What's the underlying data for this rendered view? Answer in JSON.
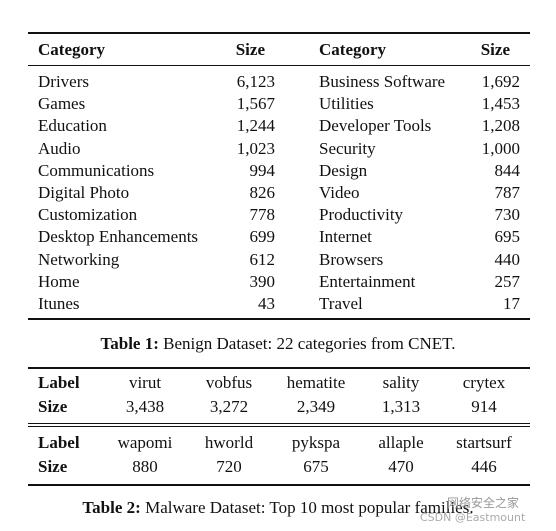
{
  "table1": {
    "header": [
      "Category",
      "Size",
      "Category",
      "Size"
    ],
    "rows": [
      [
        "Drivers",
        "6,123",
        "Business Software",
        "1,692"
      ],
      [
        "Games",
        "1,567",
        "Utilities",
        "1,453"
      ],
      [
        "Education",
        "1,244",
        "Developer Tools",
        "1,208"
      ],
      [
        "Audio",
        "1,023",
        "Security",
        "1,000"
      ],
      [
        "Communications",
        "994",
        "Design",
        "844"
      ],
      [
        "Digital Photo",
        "826",
        "Video",
        "787"
      ],
      [
        "Customization",
        "778",
        "Productivity",
        "730"
      ],
      [
        "Desktop Enhancements",
        "699",
        "Internet",
        "695"
      ],
      [
        "Networking",
        "612",
        "Browsers",
        "440"
      ],
      [
        "Home",
        "390",
        "Entertainment",
        "257"
      ],
      [
        "Itunes",
        "43",
        "Travel",
        "17"
      ]
    ],
    "caption": {
      "label": "Table 1:",
      "text": "Benign Dataset: 22 categories from CNET."
    }
  },
  "table2": {
    "groups": [
      {
        "label_header": "Label",
        "labels": [
          "virut",
          "vobfus",
          "hematite",
          "sality",
          "crytex"
        ],
        "size_header": "Size",
        "sizes": [
          "3,438",
          "3,272",
          "2,349",
          "1,313",
          "914"
        ]
      },
      {
        "label_header": "Label",
        "labels": [
          "wapomi",
          "hworld",
          "pykspa",
          "allaple",
          "startsurf"
        ],
        "size_header": "Size",
        "sizes": [
          "880",
          "720",
          "675",
          "470",
          "446"
        ]
      }
    ],
    "caption": {
      "label": "Table 2:",
      "text": "Malware Dataset: Top 10 most popular families."
    }
  },
  "watermark": {
    "brand": "网络安全之家",
    "credit": "CSDN @Eastmount"
  }
}
